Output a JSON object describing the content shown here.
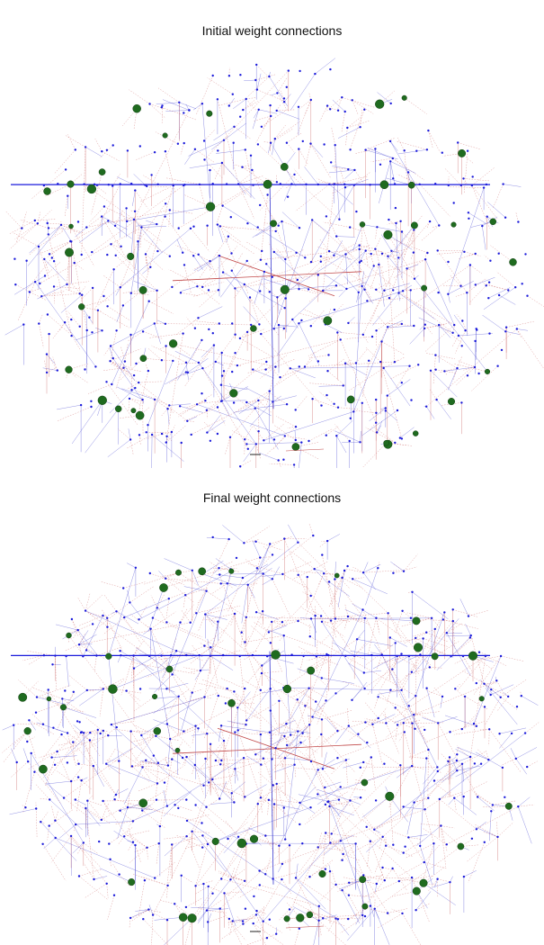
{
  "panels": [
    {
      "title": "Initial weight connections",
      "seed": 7,
      "connection_density": 1.0
    },
    {
      "title": "Final weight connections",
      "seed": 23,
      "connection_density": 1.5
    }
  ],
  "colors": {
    "node": "#1a1adb",
    "hub": "#1f6b1f",
    "edge_excitatory": "#c24a4a",
    "edge_inhibitory": "#3a3ad0",
    "background": "#ffffff"
  },
  "icons": {
    "small_node": "blue-dot",
    "hub_node": "green-circle"
  }
}
